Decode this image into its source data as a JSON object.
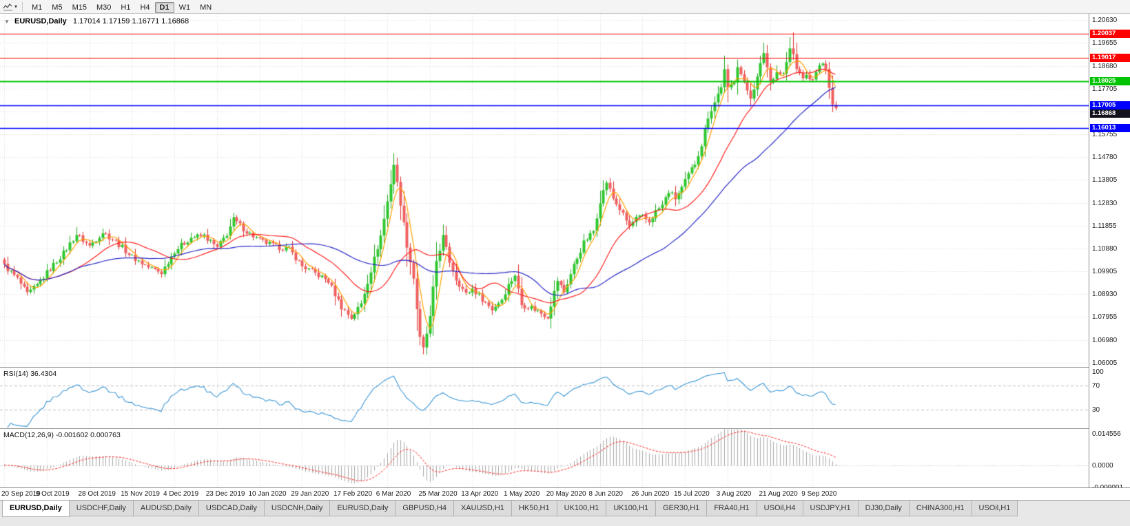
{
  "toolbar": {
    "tool_icon_name": "chart-cursor-icon",
    "caret": "▾",
    "timeframes": [
      "M1",
      "M5",
      "M15",
      "M30",
      "H1",
      "H4",
      "D1",
      "W1",
      "MN"
    ],
    "active_timeframe": "D1"
  },
  "chart_data": {
    "type": "candlestick",
    "symbol": "EURUSD",
    "period": "Daily",
    "title_caret": "▼",
    "title_symbol": "EURUSD,Daily",
    "title_ohlc": "1.17014 1.17159 1.16771 1.16868",
    "bars": 255,
    "y_axis": {
      "min": 1.0585,
      "max": 1.209,
      "ticks": [
        "1.20630",
        "1.19655",
        "1.18680",
        "1.17705",
        "1.16730",
        "1.15755",
        "1.14780",
        "1.13805",
        "1.12830",
        "1.11855",
        "1.10880",
        "1.09905",
        "1.08930",
        "1.07955",
        "1.06980",
        "1.06005"
      ]
    },
    "x_labels": [
      "20 Sep 2019",
      "9 Oct 2019",
      "28 Oct 2019",
      "15 Nov 2019",
      "4 Dec 2019",
      "23 Dec 2019",
      "10 Jan 2020",
      "29 Jan 2020",
      "17 Feb 2020",
      "6 Mar 2020",
      "25 Mar 2020",
      "13 Apr 2020",
      "1 May 2020",
      "20 May 2020",
      "8 Jun 2020",
      "26 Jun 2020",
      "15 Jul 2020",
      "3 Aug 2020",
      "21 Aug 2020",
      "9 Sep 2020"
    ],
    "label_indices": [
      0,
      13,
      26,
      39,
      52,
      65,
      78,
      91,
      104,
      117,
      130,
      143,
      156,
      169,
      182,
      195,
      208,
      221,
      234,
      247
    ],
    "close_anchors": [
      [
        0,
        1.1015
      ],
      [
        4,
        1.0958
      ],
      [
        7,
        1.0892
      ],
      [
        10,
        1.093
      ],
      [
        13,
        1.0985
      ],
      [
        18,
        1.1068
      ],
      [
        22,
        1.1148
      ],
      [
        26,
        1.1098
      ],
      [
        30,
        1.1158
      ],
      [
        34,
        1.1118
      ],
      [
        39,
        1.1052
      ],
      [
        44,
        1.1008
      ],
      [
        48,
        1.0985
      ],
      [
        52,
        1.1078
      ],
      [
        57,
        1.1135
      ],
      [
        61,
        1.1142
      ],
      [
        65,
        1.109
      ],
      [
        68,
        1.115
      ],
      [
        70,
        1.1212
      ],
      [
        74,
        1.116
      ],
      [
        78,
        1.1122
      ],
      [
        83,
        1.1096
      ],
      [
        87,
        1.1085
      ],
      [
        91,
        1.1012
      ],
      [
        95,
        1.0982
      ],
      [
        99,
        1.0948
      ],
      [
        103,
        1.0838
      ],
      [
        106,
        1.0792
      ],
      [
        109,
        1.0852
      ],
      [
        112,
        1.0995
      ],
      [
        115,
        1.1142
      ],
      [
        117,
        1.1288
      ],
      [
        119,
        1.1448
      ],
      [
        121,
        1.1282
      ],
      [
        123,
        1.1102
      ],
      [
        125,
        1.0962
      ],
      [
        127,
        1.0702
      ],
      [
        128,
        1.0658
      ],
      [
        130,
        1.0792
      ],
      [
        132,
        1.1035
      ],
      [
        134,
        1.1138
      ],
      [
        136,
        1.1032
      ],
      [
        138,
        1.0958
      ],
      [
        141,
        1.0892
      ],
      [
        143,
        1.0916
      ],
      [
        146,
        1.0872
      ],
      [
        149,
        1.0828
      ],
      [
        152,
        1.0872
      ],
      [
        154,
        1.0932
      ],
      [
        156,
        1.0976
      ],
      [
        158,
        1.0848
      ],
      [
        161,
        1.0836
      ],
      [
        164,
        1.0812
      ],
      [
        166,
        1.0798
      ],
      [
        169,
        1.0952
      ],
      [
        171,
        1.0902
      ],
      [
        174,
        1.1016
      ],
      [
        177,
        1.1112
      ],
      [
        180,
        1.1162
      ],
      [
        182,
        1.1292
      ],
      [
        184,
        1.1372
      ],
      [
        186,
        1.1302
      ],
      [
        188,
        1.1256
      ],
      [
        191,
        1.1182
      ],
      [
        193,
        1.1216
      ],
      [
        195,
        1.1222
      ],
      [
        197,
        1.1202
      ],
      [
        199,
        1.1246
      ],
      [
        201,
        1.1272
      ],
      [
        203,
        1.1332
      ],
      [
        205,
        1.1302
      ],
      [
        207,
        1.1346
      ],
      [
        209,
        1.1402
      ],
      [
        211,
        1.1452
      ],
      [
        213,
        1.1532
      ],
      [
        215,
        1.1652
      ],
      [
        217,
        1.1712
      ],
      [
        219,
        1.1782
      ],
      [
        220,
        1.1846
      ],
      [
        221,
        1.1766
      ],
      [
        223,
        1.1806
      ],
      [
        224,
        1.1872
      ],
      [
        226,
        1.1792
      ],
      [
        228,
        1.1736
      ],
      [
        230,
        1.1816
      ],
      [
        232,
        1.1926
      ],
      [
        233,
        1.1862
      ],
      [
        234,
        1.1802
      ],
      [
        236,
        1.1842
      ],
      [
        238,
        1.1832
      ],
      [
        240,
        1.1936
      ],
      [
        241,
        1.1916
      ],
      [
        242,
        1.1852
      ],
      [
        244,
        1.1822
      ],
      [
        246,
        1.1816
      ],
      [
        247,
        1.1802
      ],
      [
        248,
        1.1852
      ],
      [
        250,
        1.1872
      ],
      [
        251,
        1.1856
      ],
      [
        252,
        1.1762
      ],
      [
        253,
        1.1702
      ],
      [
        254,
        1.16868
      ]
    ],
    "wick_overrides": {
      "22": {
        "high": 1.1179
      },
      "70": {
        "high": 1.124
      },
      "119": {
        "high": 1.1495
      },
      "127": {
        "low": 1.0675
      },
      "128": {
        "low": 1.0636
      },
      "232": {
        "high": 1.1966
      },
      "240": {
        "high": 1.199
      },
      "241": {
        "high": 1.2011
      }
    },
    "last_candle": {
      "open": 1.17014,
      "high": 1.17159,
      "low": 1.16771,
      "close": 1.16868
    },
    "noise": {
      "close": 0.0012,
      "wick": 0.003
    },
    "moving_averages": [
      {
        "period": 5,
        "color": "#ffa200"
      },
      {
        "period": 20,
        "color": "#ff2020"
      },
      {
        "period": 45,
        "color": "#2828c8"
      }
    ],
    "h_lines": [
      {
        "value": 1.20037,
        "label": "1.20037",
        "color": "#ff0000",
        "lw": 1
      },
      {
        "value": 1.19017,
        "label": "1.19017",
        "color": "#ff0000",
        "lw": 1
      },
      {
        "value": 1.18025,
        "label": "1.18025",
        "color": "#00c400",
        "lw": 2
      },
      {
        "value": 1.17005,
        "label": "1.17005",
        "color": "#0000ff",
        "lw": 1.5
      },
      {
        "value": 1.16013,
        "label": "1.16013",
        "color": "#0000ff",
        "lw": 1.5
      }
    ],
    "current_price_tag": {
      "value": 1.16868,
      "label": "1.16868",
      "bg": "#12121c"
    },
    "rsi": {
      "label": "RSI(14) 36.4304",
      "period": 14,
      "levels": [
        70,
        30
      ],
      "axis_values": [
        100,
        70,
        30
      ],
      "color": "#3a96d7"
    },
    "macd": {
      "label": "MACD(12,26,9) -0.001602 0.000763",
      "fast": 12,
      "slow": 26,
      "signal": 9,
      "range": {
        "min": -0.009001,
        "max": 0.014556
      },
      "axis_labels": [
        {
          "value": 0.014556,
          "label": "0.014556"
        },
        {
          "value": 0.0,
          "label": "0.0000"
        },
        {
          "value": -0.009001,
          "label": "-0.009001"
        }
      ],
      "hist_color": "#a8a8a8",
      "signal_color": "#ff2020"
    },
    "colors": {
      "up": "#1faa1f",
      "up_fill": "#2fc82f",
      "down": "#e03030",
      "down_fill": "#f06060",
      "grid": "#dadada"
    }
  },
  "tabs": {
    "items": [
      {
        "label": "EURUSD,Daily",
        "active": true
      },
      {
        "label": "USDCHF,Daily",
        "active": false
      },
      {
        "label": "AUDUSD,Daily",
        "active": false
      },
      {
        "label": "USDCAD,Daily",
        "active": false
      },
      {
        "label": "USDCNH,Daily",
        "active": false
      },
      {
        "label": "EURUSD,Daily",
        "active": false
      },
      {
        "label": "GBPUSD,H4",
        "active": false
      },
      {
        "label": "XAUUSD,H1",
        "active": false
      },
      {
        "label": "HK50,H1",
        "active": false
      },
      {
        "label": "UK100,H1",
        "active": false
      },
      {
        "label": "UK100,H1",
        "active": false
      },
      {
        "label": "GER30,H1",
        "active": false
      },
      {
        "label": "FRA40,H1",
        "active": false
      },
      {
        "label": "USOil,H4",
        "active": false
      },
      {
        "label": "USDJPY,H1",
        "active": false
      },
      {
        "label": "DJ30,Daily",
        "active": false
      },
      {
        "label": "CHINA300,H1",
        "active": false
      },
      {
        "label": "USOil,H1",
        "active": false
      }
    ]
  }
}
